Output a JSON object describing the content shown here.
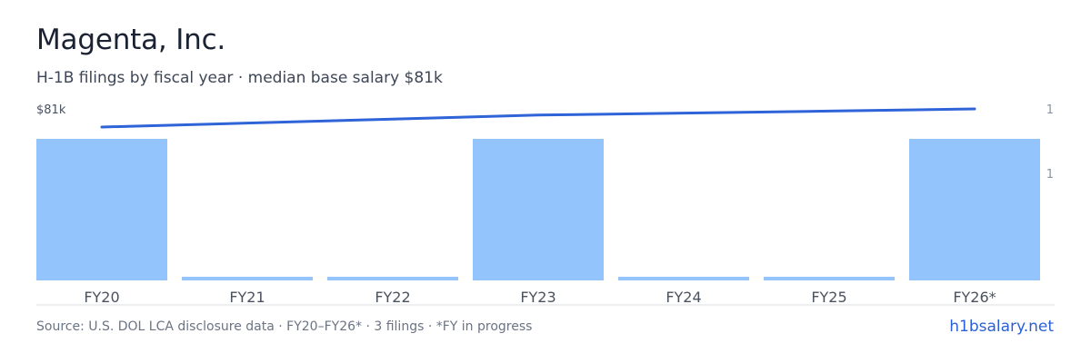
{
  "header": {
    "title": "Magenta, Inc.",
    "subtitle": "H-1B filings by fiscal year · median base salary $81k"
  },
  "chart_data": {
    "type": "bar",
    "categories": [
      "FY20",
      "FY21",
      "FY22",
      "FY23",
      "FY24",
      "FY25",
      "FY26*"
    ],
    "series": [
      {
        "values": [
          1,
          0,
          0,
          1,
          0,
          0,
          1
        ]
      }
    ],
    "line": {
      "label": "$81k",
      "values": [
        0.9,
        0.922,
        0.944,
        0.966,
        0.977,
        0.988,
        1.0
      ]
    },
    "right_axis_ticks": [
      "1",
      "1"
    ],
    "colors": {
      "bar": "#93c4fb",
      "line": "#2f63d8",
      "axis_text": "#8a93a3",
      "category_text": "#4a5260",
      "baseline": "#d8dce3"
    },
    "legend": "none",
    "grid": false
  },
  "footer": {
    "source": "Source: U.S. DOL LCA disclosure data · FY20–FY26* · 3 filings · *FY in progress",
    "link": "h1bsalary.net"
  }
}
